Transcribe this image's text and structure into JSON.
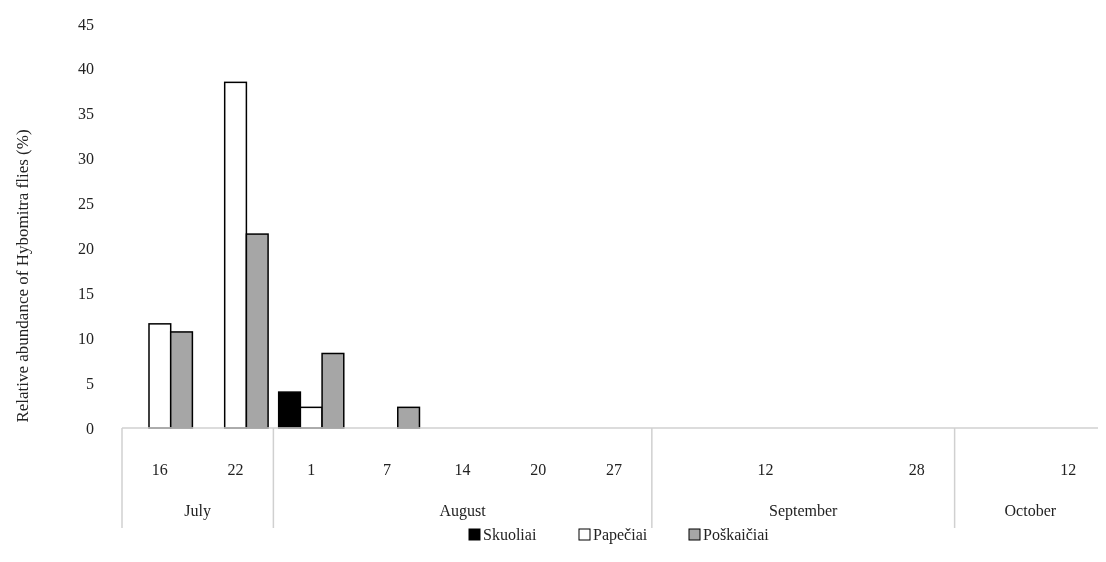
{
  "chart_data": {
    "type": "bar",
    "ylabel": "Relative abundance of Hybomitra flies (%)",
    "categories": [
      "16",
      "22",
      "1",
      "7",
      "14",
      "20",
      "27",
      null,
      "12",
      null,
      "28",
      null,
      "12"
    ],
    "annotations": [
      "July",
      "August",
      "September",
      "October"
    ],
    "series": [
      {
        "name": "Skuoliai",
        "color": "#000000",
        "values": [
          0,
          0,
          4.0,
          0,
          0,
          0,
          0,
          null,
          0,
          null,
          0,
          null,
          0
        ]
      },
      {
        "name": "Papečiai",
        "color": "#ffffff",
        "values": [
          11.6,
          38.5,
          2.3,
          0,
          0,
          0,
          0,
          null,
          0,
          null,
          0,
          null,
          0
        ]
      },
      {
        "name": "Poškaičiai",
        "color": "#a6a6a6",
        "values": [
          10.7,
          21.6,
          8.3,
          2.3,
          0,
          0,
          0,
          null,
          0,
          null,
          0,
          null,
          0
        ]
      }
    ],
    "ylim": [
      0,
      45
    ],
    "yticks": [
      0,
      5,
      10,
      15,
      20,
      25,
      30,
      35,
      40,
      45
    ],
    "grid": false,
    "legend": "bottom"
  }
}
